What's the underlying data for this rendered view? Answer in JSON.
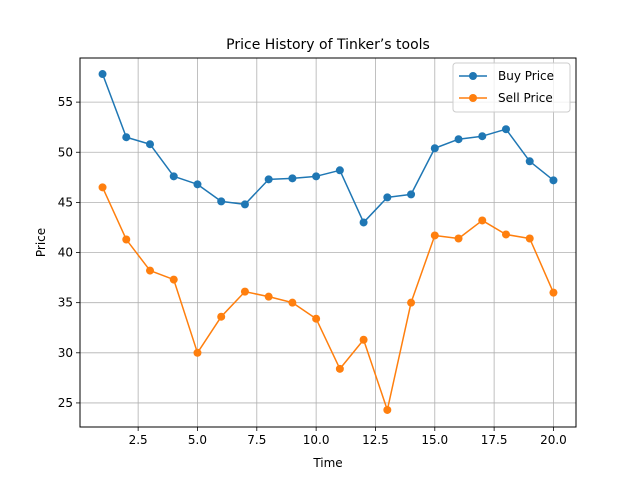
{
  "chart_data": {
    "type": "line",
    "title": "Price History of Tinker’s tools",
    "xlabel": "Time",
    "ylabel": "Price",
    "xlim": [
      0.05,
      20.95
    ],
    "ylim": [
      22.6,
      59.4
    ],
    "grid": true,
    "legend_position": "top-right",
    "x": [
      1,
      2,
      3,
      4,
      5,
      6,
      7,
      8,
      9,
      10,
      11,
      12,
      13,
      14,
      15,
      16,
      17,
      18,
      19,
      20
    ],
    "x_ticks": [
      2.5,
      5.0,
      7.5,
      10.0,
      12.5,
      15.0,
      17.5,
      20.0
    ],
    "x_tick_labels": [
      "2.5",
      "5.0",
      "7.5",
      "10.0",
      "12.5",
      "15.0",
      "17.5",
      "20.0"
    ],
    "y_ticks": [
      25,
      30,
      35,
      40,
      45,
      50,
      55
    ],
    "y_tick_labels": [
      "25",
      "30",
      "35",
      "40",
      "45",
      "50",
      "55"
    ],
    "series": [
      {
        "name": "Buy Price",
        "color": "#1f77b4",
        "values": [
          57.8,
          51.5,
          50.8,
          47.6,
          46.8,
          45.1,
          44.8,
          47.3,
          47.4,
          47.6,
          48.2,
          43.0,
          45.5,
          45.8,
          50.4,
          51.3,
          51.6,
          52.3,
          49.1,
          47.2
        ]
      },
      {
        "name": "Sell Price",
        "color": "#ff7f0e",
        "values": [
          46.5,
          41.3,
          38.2,
          37.3,
          30.0,
          33.6,
          36.1,
          35.6,
          35.0,
          33.4,
          28.4,
          31.3,
          24.3,
          35.0,
          41.7,
          41.4,
          43.2,
          41.8,
          41.4,
          36.0
        ]
      }
    ]
  }
}
